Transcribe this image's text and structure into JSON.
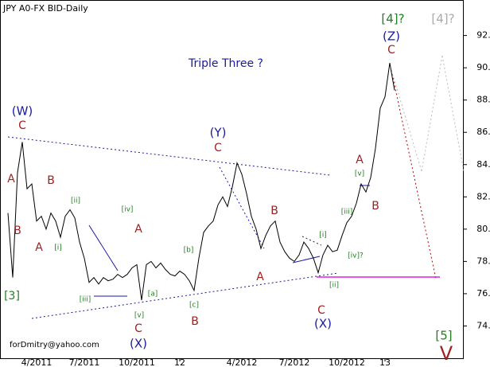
{
  "chart_data": {
    "type": "line",
    "title": "JPY A0-FX BID-Daily",
    "subtitle": "Triple Three ?",
    "footer": "forDmitry@yahoo.com",
    "categories": [
      null,
      null,
      null,
      null,
      null,
      null,
      "4/2011",
      null,
      null,
      null,
      null,
      null,
      null,
      null,
      null,
      null,
      "7/2011",
      null,
      null,
      null,
      null,
      null,
      null,
      null,
      null,
      null,
      null,
      "10/2011",
      null,
      null,
      null,
      null,
      null,
      null,
      null,
      null,
      "12",
      null,
      null,
      null,
      null,
      null,
      null,
      null,
      null,
      null,
      null,
      null,
      null,
      "4/2012",
      null,
      null,
      null,
      null,
      null,
      null,
      null,
      null,
      null,
      null,
      "7/2012",
      null,
      null,
      null,
      null,
      null,
      null,
      null,
      null,
      null,
      null,
      "10/2012",
      null,
      null,
      null,
      null,
      null,
      null,
      null,
      "13",
      null,
      null
    ],
    "series": [
      {
        "name": "JPY A0-FX BID",
        "color": "#000000",
        "values": [
          81,
          77,
          83.5,
          85.4,
          82.5,
          82.8,
          80.5,
          80.8,
          80,
          81,
          80.5,
          79.5,
          80.8,
          81.2,
          80.7,
          79.2,
          78.2,
          76.7,
          77,
          76.6,
          77,
          76.8,
          76.9,
          77.2,
          77,
          77.2,
          77.6,
          77.8,
          75.6,
          77.8,
          78,
          77.6,
          77.9,
          77.5,
          77.2,
          77.1,
          77.4,
          77.2,
          76.8,
          76.2,
          78.2,
          79.8,
          80.2,
          80.5,
          81.5,
          82,
          81.4,
          82.6,
          84.1,
          83.4,
          82.2,
          80.8,
          80,
          78.8,
          79.6,
          80.2,
          80.5,
          79.2,
          78.6,
          78.2,
          78,
          78.4,
          79.2,
          78.8,
          78.2,
          77.3,
          78.4,
          79,
          78.6,
          78.7,
          79.6,
          80.4,
          80.8,
          81.6,
          82.8,
          82.3,
          83.2,
          85,
          87.5,
          88.2,
          90.3,
          88.6
        ]
      }
    ],
    "ylim": [
      72.0,
      94.2
    ],
    "yticks": [
      {
        "value": 74,
        "label": "74.00"
      },
      {
        "value": 76,
        "label": "76.00"
      },
      {
        "value": 78,
        "label": "78.00"
      },
      {
        "value": 80,
        "label": "80.00"
      },
      {
        "value": 82,
        "label": "82.00"
      },
      {
        "value": 84,
        "label": "84.00"
      },
      {
        "value": 86,
        "label": "86.00"
      },
      {
        "value": 88,
        "label": "88.00"
      },
      {
        "value": 90,
        "label": "90.00"
      },
      {
        "value": 92,
        "label": "92.00"
      }
    ],
    "annotations": [
      "[3]",
      "A",
      "B",
      "C",
      "(W)",
      "B",
      "A",
      "[i]",
      "[ii]",
      "[iii]",
      "[iv]",
      "A",
      "[v]",
      "C",
      "(X)",
      "[a]",
      "[b]",
      "[c]",
      "B",
      "(Y)",
      "C",
      "B",
      "A",
      "[i]",
      "[iv]?",
      "[iii]",
      "[ii]",
      "C",
      "(X)",
      "A",
      "[v]",
      "B",
      "[4]?",
      "(Z)",
      "C",
      "[4]?",
      "[5]",
      "V"
    ]
  }
}
